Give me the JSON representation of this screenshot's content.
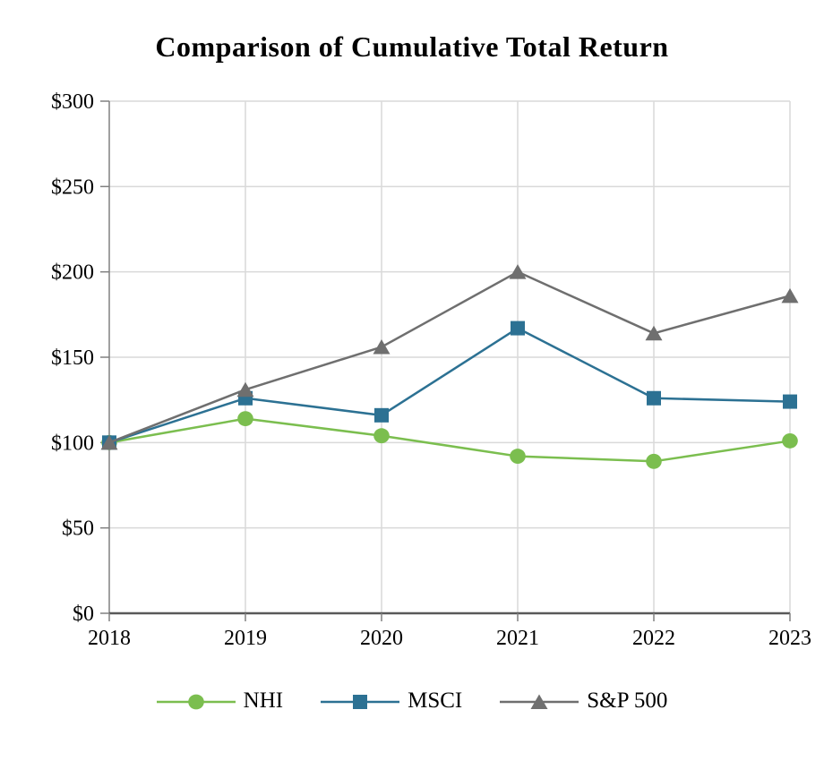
{
  "title": "Comparison of Cumulative Total Return",
  "colors": {
    "background": "#ffffff",
    "text": "#000000",
    "gridline": "#d9d9d9",
    "axis_line": "#808080",
    "baseline": "#595959",
    "nhi_green": "#7bbe4f",
    "msci_blue": "#2c7193",
    "sp500_gray": "#6f6f6f"
  },
  "chart_data": {
    "type": "line",
    "title": "Comparison of Cumulative Total Return",
    "x": [
      "2018",
      "2019",
      "2020",
      "2021",
      "2022",
      "2023"
    ],
    "series": [
      {
        "name": "NHI",
        "marker": "circle",
        "color": "#7bbe4f",
        "values": [
          100,
          114,
          104,
          92,
          89,
          101
        ]
      },
      {
        "name": "MSCI",
        "marker": "square",
        "color": "#2c7193",
        "values": [
          100,
          126,
          116,
          167,
          126,
          124
        ]
      },
      {
        "name": "S&P 500",
        "marker": "triangle",
        "color": "#6f6f6f",
        "values": [
          100,
          131,
          156,
          200,
          164,
          186
        ]
      }
    ],
    "xlabel": "",
    "ylabel": "",
    "ylim": [
      0,
      300
    ],
    "ytick_step": 50,
    "ytick_labels": [
      "$0",
      "$50",
      "$100",
      "$150",
      "$200",
      "$250",
      "$300"
    ],
    "grid": true,
    "legend_position": "bottom"
  }
}
